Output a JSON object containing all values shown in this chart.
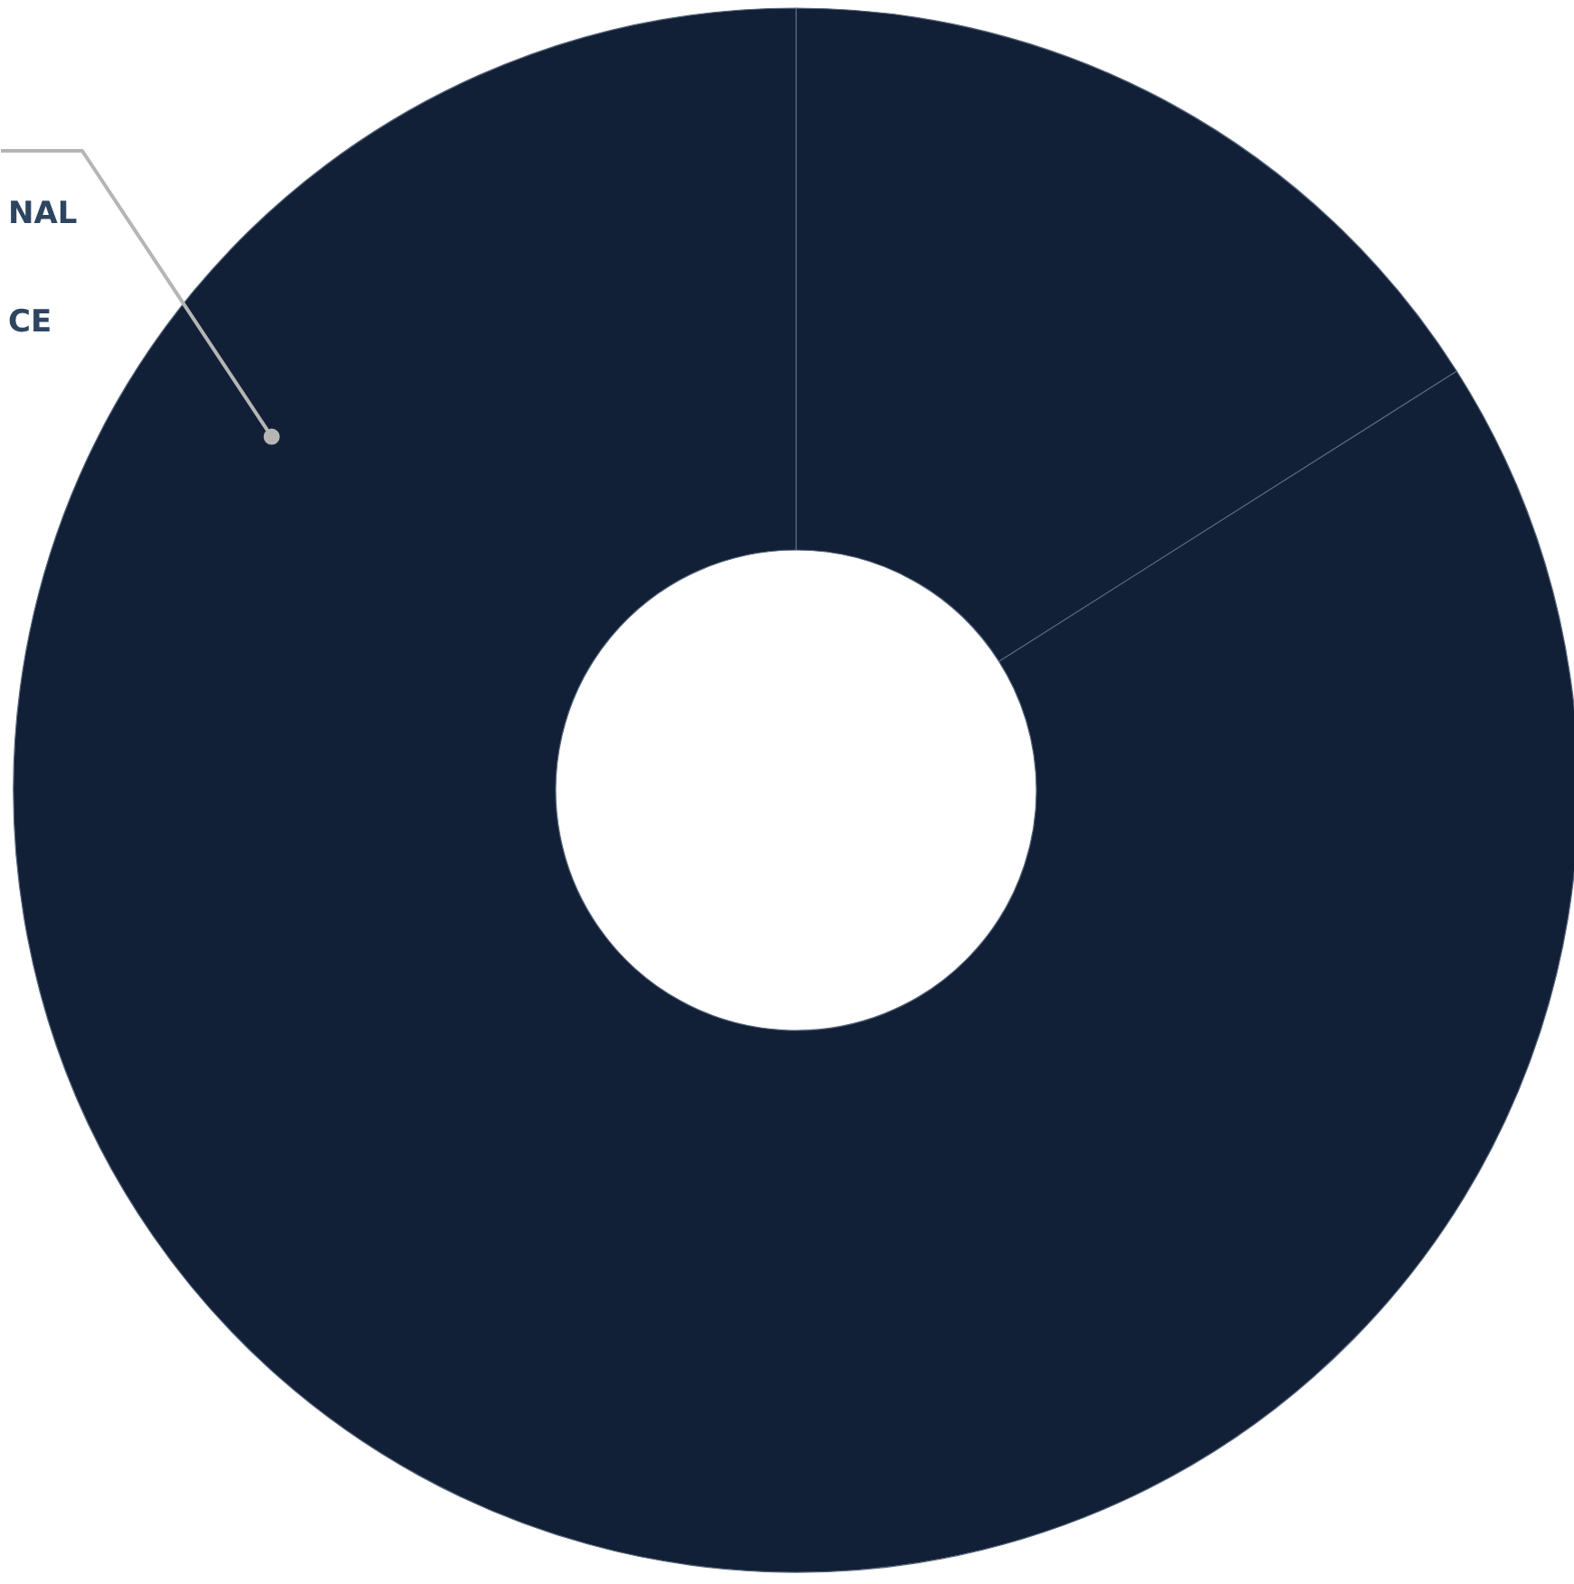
{
  "chart_data": {
    "type": "donut",
    "categories": [
      null,
      "NAL\nCE"
    ],
    "values": [
      16,
      84
    ],
    "colors": [
      "#112036",
      "#112036"
    ]
  }
}
